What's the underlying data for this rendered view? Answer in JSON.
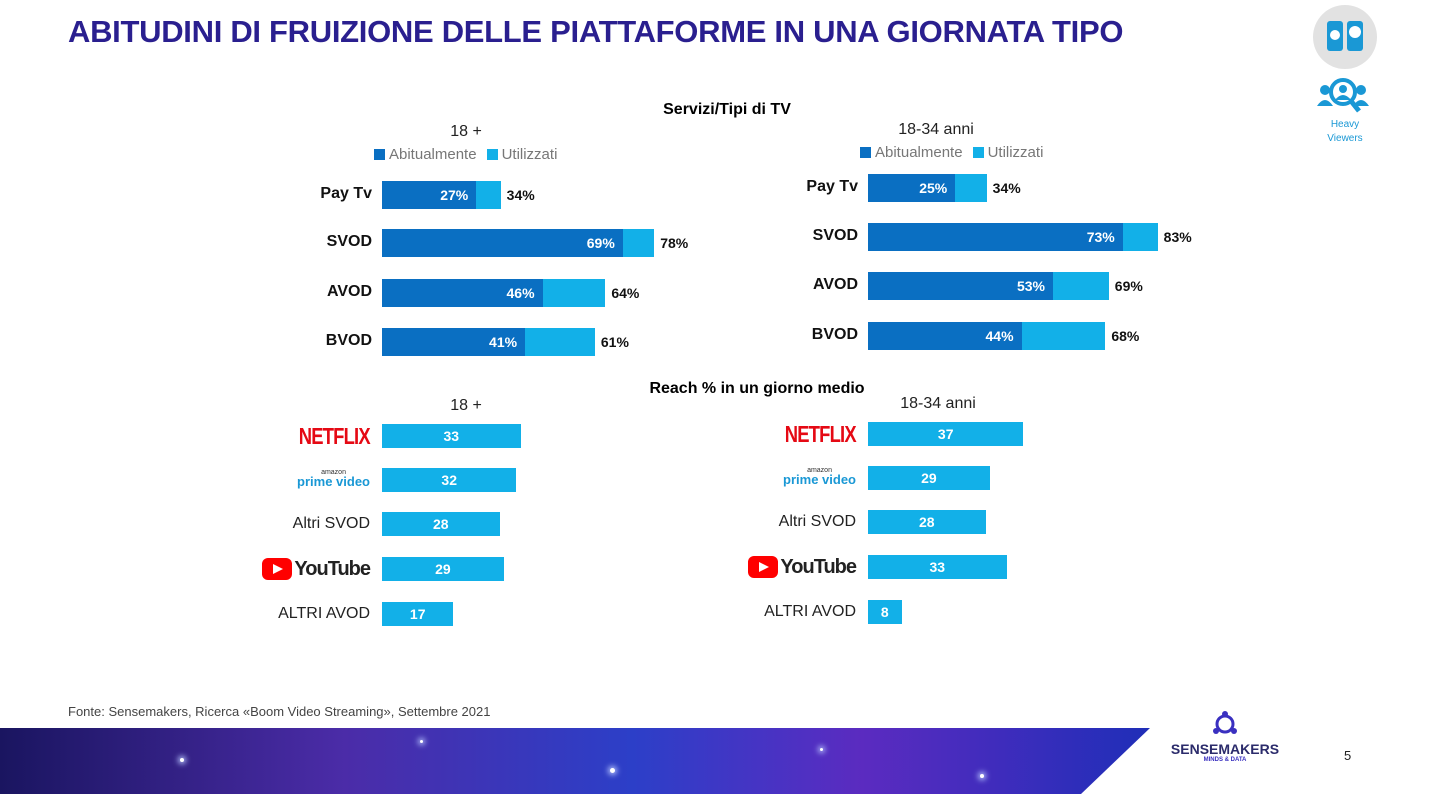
{
  "title": "ABITUDINI DI FRUIZIONE DELLE PIATTAFORME IN UNA GIORNATA TIPO",
  "badge": {
    "label_line1": "Heavy",
    "label_line2": "Viewers",
    "icon": "user-search-icon"
  },
  "colors": {
    "abitualmente": "#0a6fc2",
    "utilizzati": "#12b0e8",
    "title": "#2a1f8f"
  },
  "chart_data": [
    {
      "type": "bar",
      "title": "Servizi/Tipi di TV",
      "subtitle": "18 +",
      "legend": [
        "Abitualmente",
        "Utilizzati"
      ],
      "categories": [
        "Pay Tv",
        "SVOD",
        "AVOD",
        "BVOD"
      ],
      "series": [
        {
          "name": "Abitualmente",
          "values": [
            27,
            69,
            46,
            41
          ],
          "labels": [
            "27%",
            "69%",
            "46%",
            "41%"
          ]
        },
        {
          "name": "Utilizzati",
          "values": [
            34,
            78,
            64,
            61
          ],
          "labels": [
            "34%",
            "78%",
            "64%",
            "61%"
          ]
        }
      ]
    },
    {
      "type": "bar",
      "title": "Servizi/Tipi di TV",
      "subtitle": "18-34 anni",
      "legend": [
        "Abitualmente",
        "Utilizzati"
      ],
      "categories": [
        "Pay Tv",
        "SVOD",
        "AVOD",
        "BVOD"
      ],
      "series": [
        {
          "name": "Abitualmente",
          "values": [
            25,
            73,
            53,
            44
          ],
          "labels": [
            "25%",
            "73%",
            "53%",
            "44%"
          ]
        },
        {
          "name": "Utilizzati",
          "values": [
            34,
            83,
            69,
            68
          ],
          "labels": [
            "34%",
            "83%",
            "69%",
            "68%"
          ]
        }
      ]
    },
    {
      "type": "bar",
      "title": "Reach % in un giorno medio",
      "subtitle": "18 +",
      "categories": [
        "Netflix",
        "Prime Video",
        "Altri SVOD",
        "YouTube",
        "ALTRI AVOD"
      ],
      "values": [
        33,
        32,
        28,
        29,
        17
      ]
    },
    {
      "type": "bar",
      "title": "Reach % in un giorno medio",
      "subtitle": "18-34 anni",
      "categories": [
        "Netflix",
        "Prime Video",
        "Altri SVOD",
        "YouTube",
        "ALTRI AVOD"
      ],
      "values": [
        37,
        29,
        28,
        33,
        8
      ]
    }
  ],
  "brand_text": {
    "netflix": "NETFLIX",
    "amazon": "amazon",
    "prime": "prime video",
    "youtube": "YouTube"
  },
  "source": "Fonte: Sensemakers, Ricerca «Boom Video Streaming», Settembre 2021",
  "logo": {
    "name": "SENSEMAKERS",
    "tagline": "MINDS & DATA"
  },
  "page_number": "5"
}
